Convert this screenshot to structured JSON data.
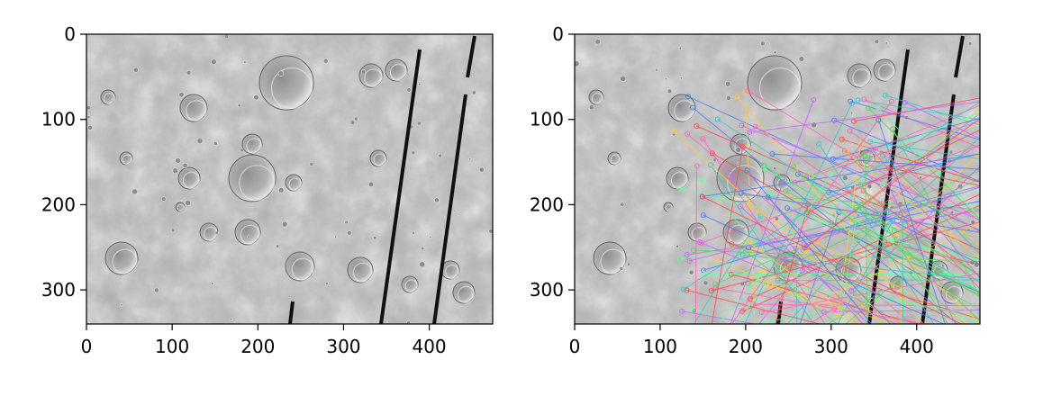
{
  "chart_data": [
    {
      "type": "image",
      "title": "",
      "xlabel": "",
      "ylabel": "",
      "xlim": [
        0,
        474
      ],
      "ylim": [
        340,
        0
      ],
      "x_ticks": [
        0,
        100,
        200,
        300,
        400
      ],
      "y_ticks": [
        0,
        100,
        200,
        300
      ],
      "grid": false,
      "legend": "none",
      "content": "grayscale cratered terrain image"
    },
    {
      "type": "image",
      "title": "",
      "xlabel": "",
      "ylabel": "",
      "xlim": [
        0,
        474
      ],
      "ylim": [
        340,
        0
      ],
      "x_ticks": [
        0,
        100,
        200,
        300,
        400
      ],
      "y_ticks": [
        0,
        100,
        200,
        300
      ],
      "grid": false,
      "legend": "none",
      "content": "grayscale terrain image with overlaid colored feature-match lines"
    }
  ],
  "colors": {
    "axis": "#000000",
    "terrain_light": "#c8c8c8",
    "terrain_mid": "#a6a6a6",
    "terrain_dark": "#7a7a7a",
    "match_lines": [
      "#ff4d4d",
      "#4d7dff",
      "#5cd65c",
      "#cc66ff",
      "#33cccc",
      "#ffcc33",
      "#ff66b3",
      "#66ff99"
    ]
  }
}
